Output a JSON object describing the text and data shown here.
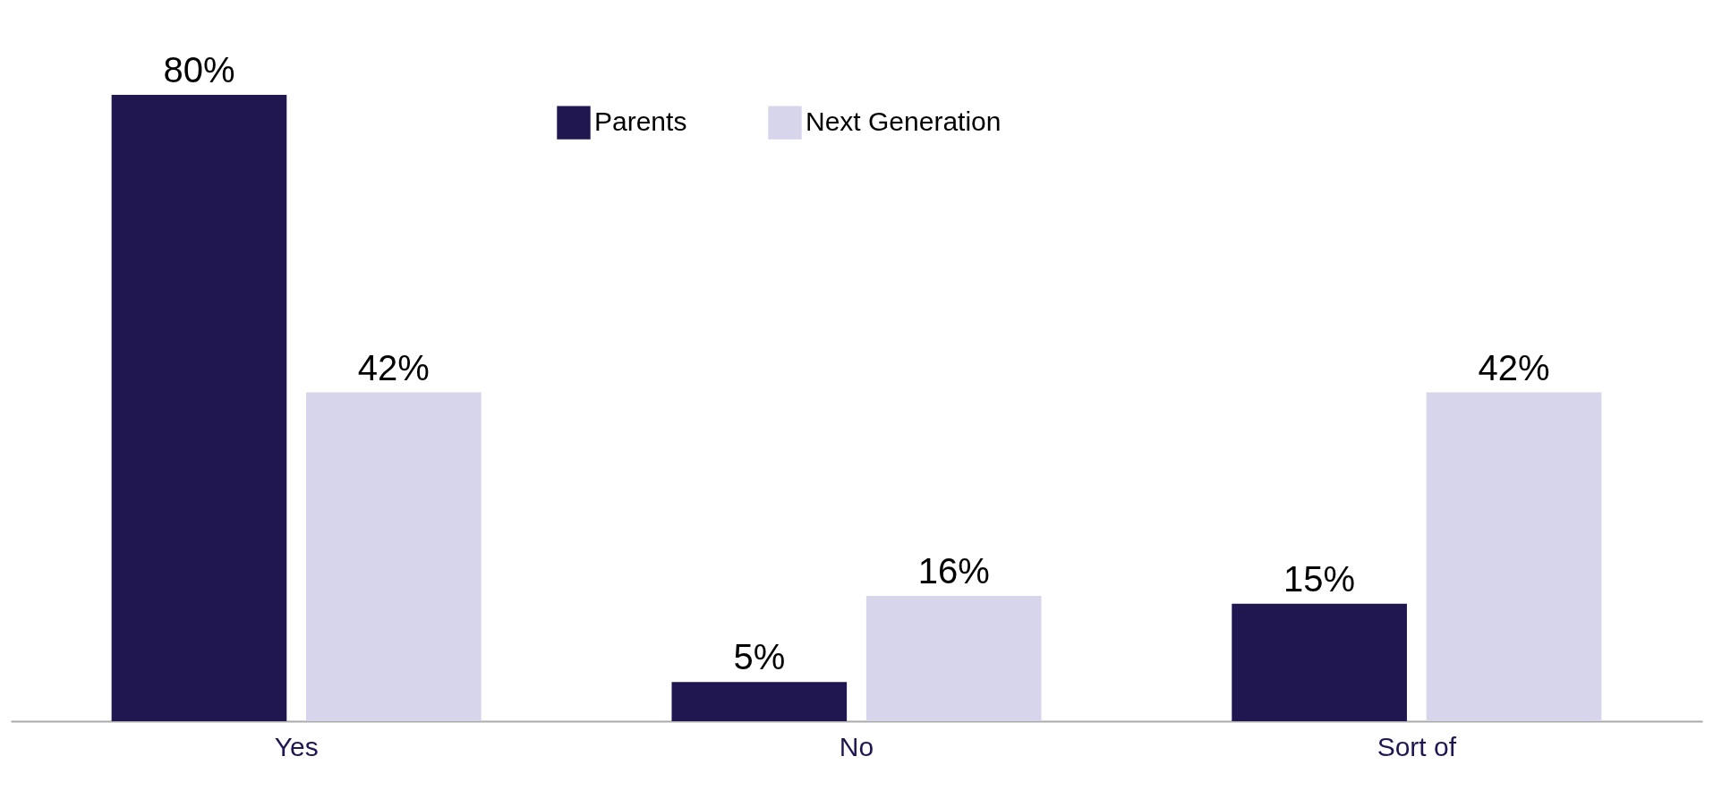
{
  "chart_data": {
    "type": "bar",
    "categories": [
      "Yes",
      "No",
      "Sort of"
    ],
    "series": [
      {
        "name": "Parents",
        "color": "#211750",
        "values": [
          80,
          5,
          15
        ],
        "value_labels": [
          "80%",
          "5%",
          "15%"
        ]
      },
      {
        "name": "Next Generation",
        "color": "#d7d5ec",
        "values": [
          42,
          16,
          42
        ],
        "value_labels": [
          "42%",
          "16%",
          "42%"
        ]
      }
    ],
    "legend": "top"
  }
}
